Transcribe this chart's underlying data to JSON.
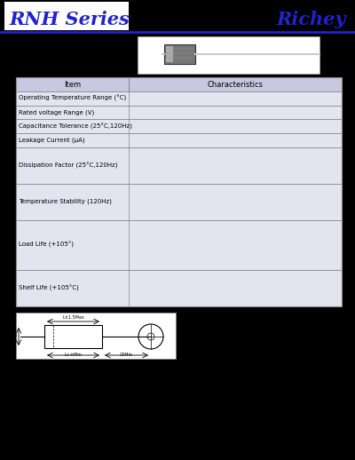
{
  "title": "RNH Series",
  "brand": "Richey",
  "title_color": "#2222cc",
  "brand_color": "#2222cc",
  "bg_color": "#000000",
  "header_line_color": "#2222cc",
  "title_box_color": "#ffffff",
  "table_header_bg": "#c8c8e0",
  "table_row_bg": "#e4e4f0",
  "table_border_color": "#888888",
  "table_items": [
    "Operating Temperature Range (°C)",
    "Rated voltage Range (V)",
    "Capacitance Tolerance (25°C,120Hz)",
    "Leakage Current (μA)",
    "Dissipation Factor (25°C,120Hz)",
    "Temperature Stability (120Hz)",
    "Load Life (+105°)",
    "Shelf Life (+105°C)"
  ],
  "table_characteristics": "Characteristics",
  "table_item_label": "Item",
  "row_heights": [
    0.5,
    0.5,
    0.5,
    0.5,
    1.3,
    1.3,
    1.8,
    1.3
  ],
  "title_font_size": 15,
  "brand_font_size": 15,
  "item_font_size": 5.0,
  "header_font_size": 6.0
}
